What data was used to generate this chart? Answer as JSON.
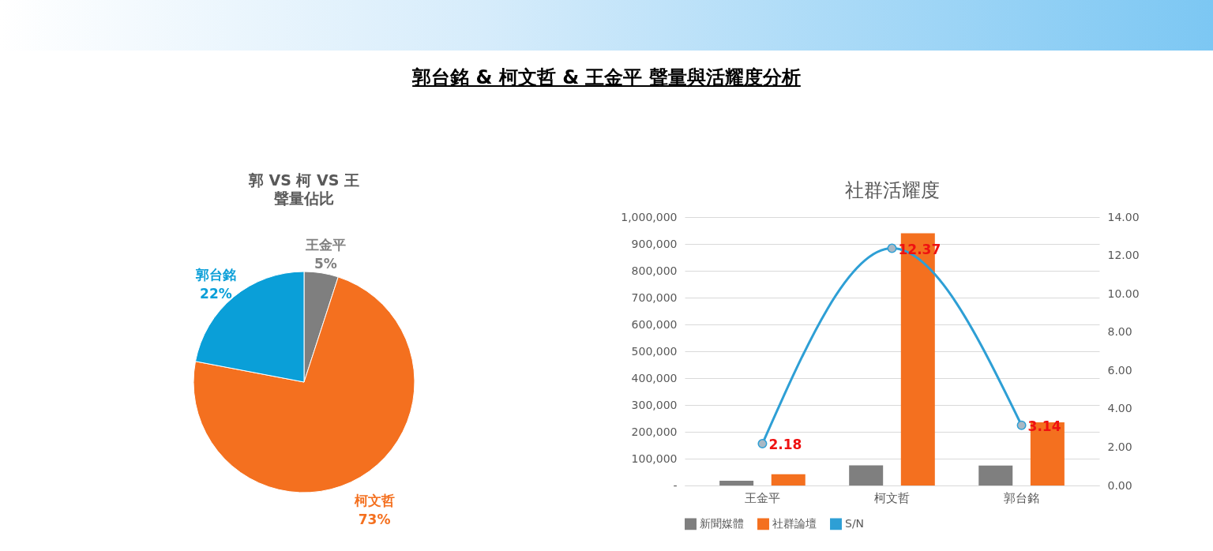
{
  "chart_data": [
    {
      "type": "other",
      "title": "郭台銘 & 柯文哲 & 王金平 聲量與活耀度分析"
    },
    {
      "type": "pie",
      "title": "郭 VS 柯 VS 王",
      "subtitle": "聲量佔比",
      "categories": [
        "王金平",
        "柯文哲",
        "郭台銘"
      ],
      "values": [
        5,
        73,
        22
      ],
      "colors": [
        "#7f7f7f",
        "#f4701f",
        "#0a9fd8"
      ],
      "value_labels": [
        "5%",
        "73%",
        "22%"
      ]
    },
    {
      "type": "bar",
      "title": "社群活耀度",
      "categories": [
        "王金平",
        "柯文哲",
        "郭台銘"
      ],
      "series": [
        {
          "name": "新聞媒體",
          "color": "#7f7f7f",
          "values": [
            18000,
            75000,
            74000
          ]
        },
        {
          "name": "社群論壇",
          "color": "#f4701f",
          "values": [
            42000,
            940000,
            235000
          ]
        },
        {
          "name": "S/N",
          "type": "line",
          "axis": "y2",
          "color": "#2e9fd5",
          "values": [
            2.18,
            12.37,
            3.14
          ],
          "value_labels": [
            "2.18",
            "12.37",
            "3.14"
          ]
        }
      ],
      "ylim": [
        0,
        1000000
      ],
      "yticks": [
        {
          "value": 0,
          "label": "-"
        },
        {
          "value": 100000,
          "label": "100,000"
        },
        {
          "value": 200000,
          "label": "200,000"
        },
        {
          "value": 300000,
          "label": "300,000"
        },
        {
          "value": 400000,
          "label": "400,000"
        },
        {
          "value": 500000,
          "label": "500,000"
        },
        {
          "value": 600000,
          "label": "600,000"
        },
        {
          "value": 700000,
          "label": "700,000"
        },
        {
          "value": 800000,
          "label": "800,000"
        },
        {
          "value": 900000,
          "label": "900,000"
        },
        {
          "value": 1000000,
          "label": "1,000,000"
        }
      ],
      "y2lim": [
        0,
        14
      ],
      "y2ticks": [
        {
          "value": 0,
          "label": "0.00"
        },
        {
          "value": 2,
          "label": "2.00"
        },
        {
          "value": 4,
          "label": "4.00"
        },
        {
          "value": 6,
          "label": "6.00"
        },
        {
          "value": 8,
          "label": "8.00"
        },
        {
          "value": 10,
          "label": "10.00"
        },
        {
          "value": 12,
          "label": "12.00"
        },
        {
          "value": 14,
          "label": "14.00"
        }
      ],
      "grid": "y",
      "legend": "bottom",
      "marker": "circle"
    }
  ]
}
